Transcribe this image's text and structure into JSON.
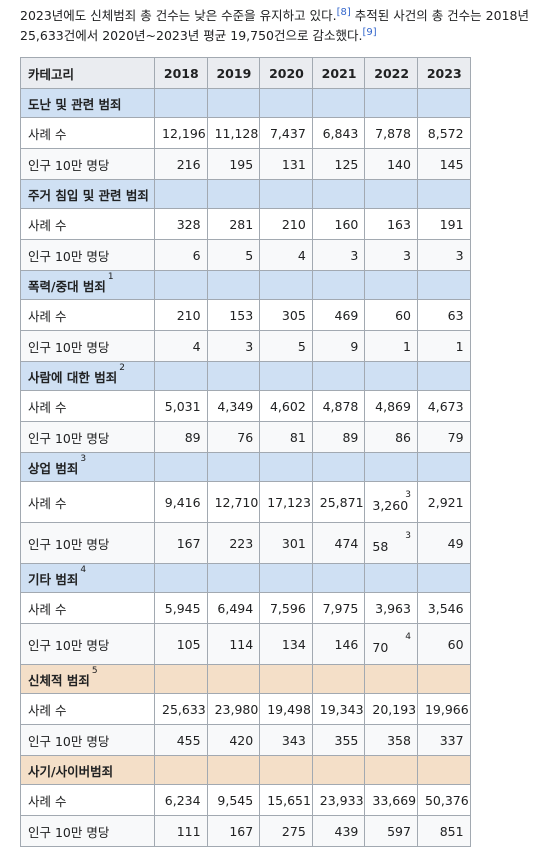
{
  "intro": {
    "text_a": "2023년에도 신체범죄 총 건수는 낮은 수준을 유지하고 있다.",
    "ref_a": "[8]",
    "text_b": "추적된 사건의 총 건수는 2018년 25,633건에서 2020년~2023년 평균 19,750건으로 감소했다.",
    "ref_b": "[9]"
  },
  "table": {
    "headers": [
      "카테고리",
      "2018",
      "2019",
      "2020",
      "2021",
      "2022",
      "2023"
    ],
    "row_label_cases": "사례 수",
    "row_label_rate": "인구 10만 명당",
    "categories": [
      {
        "name": "도난 및 관련 범죄",
        "footnote": "",
        "color": "#cfe0f3",
        "cases": [
          "12,196",
          "11,128",
          "7,437",
          "6,843",
          "7,878",
          "8,572"
        ],
        "rate": [
          "216",
          "195",
          "131",
          "125",
          "140",
          "145"
        ]
      },
      {
        "name": "주거 침입 및 관련 범죄",
        "footnote": "",
        "color": "#cfe0f3",
        "cases": [
          "328",
          "281",
          "210",
          "160",
          "163",
          "191"
        ],
        "rate": [
          "6",
          "5",
          "4",
          "3",
          "3",
          "3"
        ]
      },
      {
        "name": "폭력/중대 범죄",
        "footnote": "1",
        "color": "#cfe0f3",
        "cases": [
          "210",
          "153",
          "305",
          "469",
          "60",
          "63"
        ],
        "rate": [
          "4",
          "3",
          "5",
          "9",
          "1",
          "1"
        ]
      },
      {
        "name": "사람에 대한 범죄",
        "footnote": "2",
        "color": "#cfe0f3",
        "cases": [
          "5,031",
          "4,349",
          "4,602",
          "4,878",
          "4,869",
          "4,673"
        ],
        "rate": [
          "89",
          "76",
          "81",
          "89",
          "86",
          "79"
        ]
      },
      {
        "name": "상업 범죄",
        "footnote": "3",
        "color": "#cfe0f3",
        "cases": [
          "9,416",
          "12,710",
          "17,123",
          "25,871",
          "3,260",
          "2,921"
        ],
        "rate": [
          "167",
          "223",
          "301",
          "474",
          "58",
          "49"
        ],
        "cases_2022_note": "3",
        "rate_2022_note": "3"
      },
      {
        "name": "기타 범죄",
        "footnote": "4",
        "color": "#cfe0f3",
        "cases": [
          "5,945",
          "6,494",
          "7,596",
          "7,975",
          "3,963",
          "3,546"
        ],
        "rate": [
          "105",
          "114",
          "134",
          "146",
          "70",
          "60"
        ],
        "rate_2022_note": "4"
      },
      {
        "name": "신체적 범죄",
        "footnote": "5",
        "color": "#f4dfc8",
        "cases": [
          "25,633",
          "23,980",
          "19,498",
          "19,343",
          "20,193",
          "19,966"
        ],
        "rate": [
          "455",
          "420",
          "343",
          "355",
          "358",
          "337"
        ]
      },
      {
        "name": "사기/사이버범죄",
        "footnote": "",
        "color": "#f4dfc8",
        "cases": [
          "6,234",
          "9,545",
          "15,651",
          "23,933",
          "33,669",
          "50,376"
        ],
        "rate": [
          "111",
          "167",
          "275",
          "439",
          "597",
          "851"
        ]
      }
    ]
  }
}
